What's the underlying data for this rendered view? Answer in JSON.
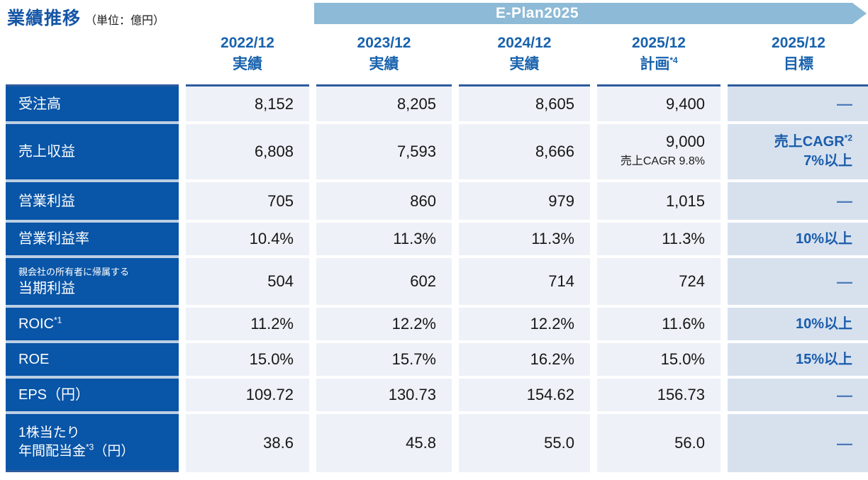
{
  "title": {
    "text": "業績推移",
    "unit": "（単位：億円）"
  },
  "banner": {
    "label": "E-Plan2025"
  },
  "header": {
    "cols": [
      {
        "period": "2022/12",
        "kind": "実績",
        "sup": ""
      },
      {
        "period": "2023/12",
        "kind": "実績",
        "sup": ""
      },
      {
        "period": "2024/12",
        "kind": "実績",
        "sup": ""
      },
      {
        "period": "2025/12",
        "kind": "計画",
        "sup": "*4"
      },
      {
        "period": "2025/12",
        "kind": "目標",
        "sup": ""
      }
    ]
  },
  "rows": {
    "orders": {
      "label": "受注高",
      "values": [
        "8,152",
        "8,205",
        "8,605",
        "9,400"
      ],
      "target": "—"
    },
    "revenue": {
      "label": "売上収益",
      "values": [
        "6,808",
        "7,593",
        "8,666",
        "9,000"
      ],
      "plan_note": "売上CAGR 9.8%",
      "target_main": "売上CAGR",
      "target_sup": "*2",
      "target_sub": "7%以上"
    },
    "op_profit": {
      "label": "営業利益",
      "values": [
        "705",
        "860",
        "979",
        "1,015"
      ],
      "target": "—"
    },
    "op_margin": {
      "label": "営業利益率",
      "values": [
        "10.4%",
        "11.3%",
        "11.3%",
        "11.3%"
      ],
      "target": "10%以上"
    },
    "net_income": {
      "label_note": "親会社の所有者に帰属する",
      "label": "当期利益",
      "values": [
        "504",
        "602",
        "714",
        "724"
      ],
      "target": "—"
    },
    "roic": {
      "label": "ROIC",
      "label_sup": "*1",
      "values": [
        "11.2%",
        "12.2%",
        "12.2%",
        "11.6%"
      ],
      "target": "10%以上"
    },
    "roe": {
      "label": "ROE",
      "values": [
        "15.0%",
        "15.7%",
        "16.2%",
        "15.0%"
      ],
      "target": "15%以上"
    },
    "eps": {
      "label": "EPS（円）",
      "values": [
        "109.72",
        "130.73",
        "154.62",
        "156.73"
      ],
      "target": "—"
    },
    "dividend": {
      "label_line1": "1株当たり",
      "label_line2": "年間配当金",
      "label_sup": "*3",
      "label_suffix": "（円）",
      "values": [
        "38.6",
        "45.8",
        "55.0",
        "56.0"
      ],
      "target": "—"
    }
  },
  "colors": {
    "label_bg": "#0955a7",
    "cell_bg": "#eef1f7",
    "target_bg": "#d7e1ee",
    "banner_bg": "#8dbad6",
    "header_text": "#1862ad",
    "target_text": "#1a5cab",
    "title_text": "#1656a6",
    "top_border": "#2d5b9e"
  },
  "chart_data": {
    "type": "table",
    "title": "業績推移（単位：億円）",
    "banner": "E-Plan2025",
    "columns": [
      "2022/12 実績",
      "2023/12 実績",
      "2024/12 実績",
      "2025/12 計画*4",
      "2025/12 目標"
    ],
    "rows": [
      [
        "受注高",
        "8,152",
        "8,205",
        "8,605",
        "9,400",
        "—"
      ],
      [
        "売上収益",
        "6,808",
        "7,593",
        "8,666",
        "9,000 売上CAGR 9.8%",
        "売上CAGR*2 7%以上"
      ],
      [
        "営業利益",
        "705",
        "860",
        "979",
        "1,015",
        "—"
      ],
      [
        "営業利益率",
        "10.4%",
        "11.3%",
        "11.3%",
        "11.3%",
        "10%以上"
      ],
      [
        "親会社の所有者に帰属する当期利益",
        "504",
        "602",
        "714",
        "724",
        "—"
      ],
      [
        "ROIC*1",
        "11.2%",
        "12.2%",
        "12.2%",
        "11.6%",
        "10%以上"
      ],
      [
        "ROE",
        "15.0%",
        "15.7%",
        "16.2%",
        "15.0%",
        "15%以上"
      ],
      [
        "EPS（円）",
        "109.72",
        "130.73",
        "154.62",
        "156.73",
        "—"
      ],
      [
        "1株当たり年間配当金*3（円）",
        "38.6",
        "45.8",
        "55.0",
        "56.0",
        "—"
      ]
    ]
  }
}
